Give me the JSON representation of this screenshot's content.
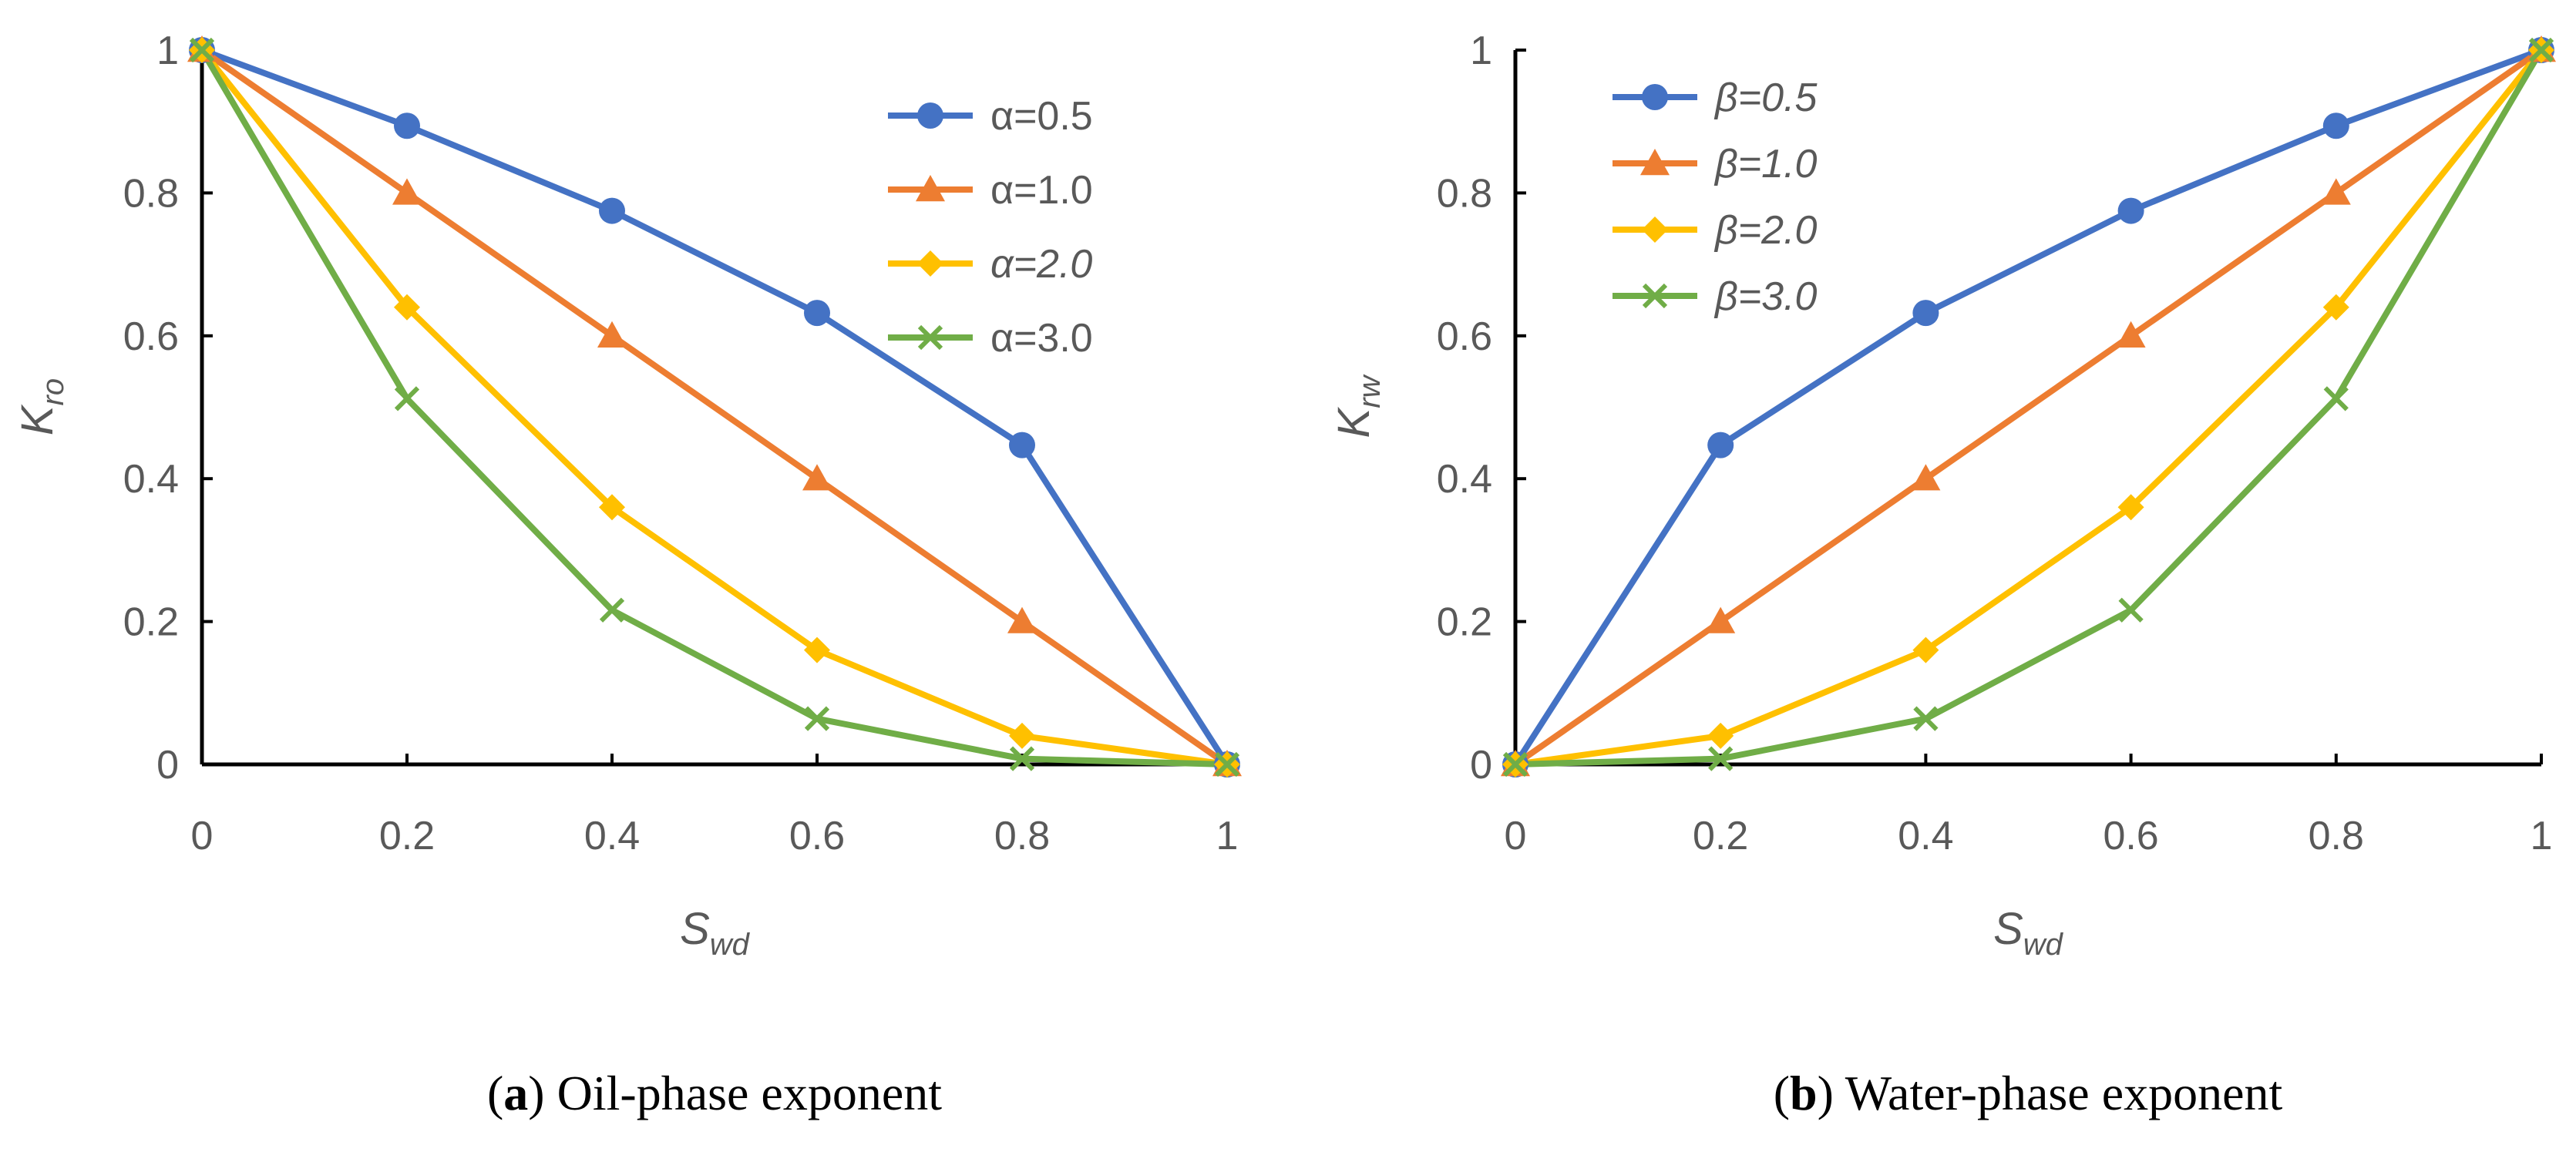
{
  "chart_data": [
    {
      "type": "line",
      "caption": {
        "letter": "a",
        "text": " Oil-phase exponent"
      },
      "xlabel": {
        "main": "S",
        "sub": "wd"
      },
      "ylabel": {
        "main": "K",
        "sub": "ro"
      },
      "xlim": [
        0,
        1
      ],
      "ylim": [
        0,
        1
      ],
      "xticks": [
        "0",
        "0.2",
        "0.4",
        "0.6",
        "0.8",
        "1"
      ],
      "yticks": [
        "0",
        "0.2",
        "0.4",
        "0.6",
        "0.8",
        "1"
      ],
      "x": [
        0,
        0.2,
        0.4,
        0.6,
        0.8,
        1
      ],
      "legend_position": "top-right",
      "series": [
        {
          "name": "α=0.5",
          "italic": false,
          "color": "#4472C4",
          "marker": "circle",
          "values": [
            1,
            0.894,
            0.775,
            0.632,
            0.447,
            0
          ]
        },
        {
          "name": "α=1.0",
          "italic": false,
          "color": "#ED7D31",
          "marker": "triangle",
          "values": [
            1,
            0.8,
            0.6,
            0.4,
            0.2,
            0
          ]
        },
        {
          "name": "α=2.0",
          "italic": true,
          "color": "#FFC000",
          "marker": "diamond",
          "values": [
            1,
            0.64,
            0.36,
            0.16,
            0.04,
            0
          ]
        },
        {
          "name": "α=3.0",
          "italic": false,
          "color": "#70AD47",
          "marker": "x",
          "values": [
            1,
            0.512,
            0.216,
            0.064,
            0.008,
            0
          ]
        }
      ]
    },
    {
      "type": "line",
      "caption": {
        "letter": "b",
        "text": " Water-phase exponent"
      },
      "xlabel": {
        "main": "S",
        "sub": "wd"
      },
      "ylabel": {
        "main": "K",
        "sub": "rw"
      },
      "xlim": [
        0,
        1
      ],
      "ylim": [
        0,
        1
      ],
      "xticks": [
        "0",
        "0.2",
        "0.4",
        "0.6",
        "0.8",
        "1"
      ],
      "yticks": [
        "0",
        "0.2",
        "0.4",
        "0.6",
        "0.8",
        "1"
      ],
      "x": [
        0,
        0.2,
        0.4,
        0.6,
        0.8,
        1
      ],
      "legend_position": "top-left",
      "series": [
        {
          "name": "β=0.5",
          "italic": true,
          "color": "#4472C4",
          "marker": "circle",
          "values": [
            0,
            0.447,
            0.632,
            0.775,
            0.894,
            1
          ]
        },
        {
          "name": "β=1.0",
          "italic": true,
          "color": "#ED7D31",
          "marker": "triangle",
          "values": [
            0,
            0.2,
            0.4,
            0.6,
            0.8,
            1
          ]
        },
        {
          "name": "β=2.0",
          "italic": true,
          "color": "#FFC000",
          "marker": "diamond",
          "values": [
            0,
            0.04,
            0.16,
            0.36,
            0.64,
            1
          ]
        },
        {
          "name": "β=3.0",
          "italic": true,
          "color": "#70AD47",
          "marker": "x",
          "values": [
            0,
            0.008,
            0.064,
            0.216,
            0.512,
            1
          ]
        }
      ]
    }
  ]
}
